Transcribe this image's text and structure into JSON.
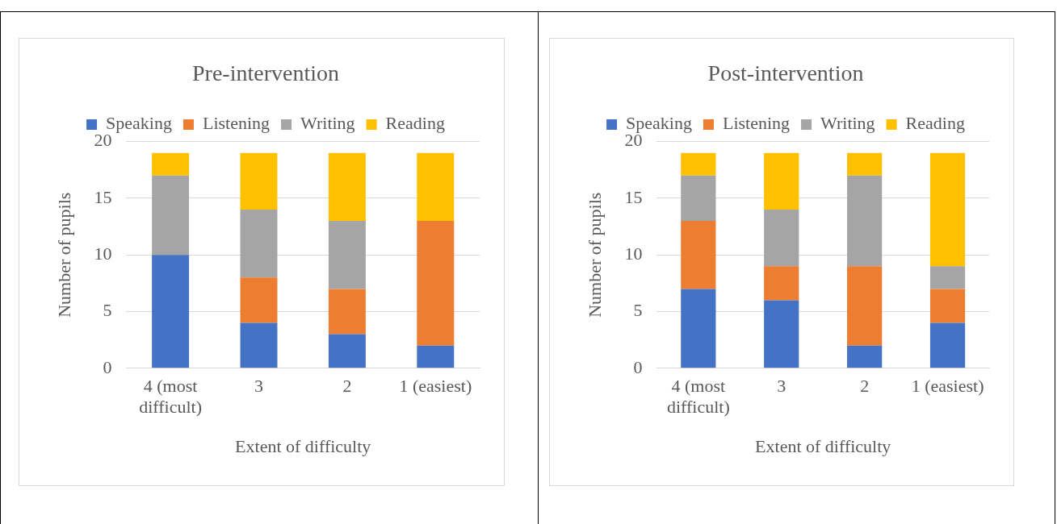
{
  "chart_data": [
    {
      "type": "bar",
      "title": "Pre-intervention",
      "xlabel": "Extent of difficulty",
      "ylabel": "Number of pupils",
      "categories": [
        "4 (most difficult)",
        "3",
        "2",
        "1 (easiest)"
      ],
      "stacked": true,
      "ylim": [
        0,
        20
      ],
      "yticks": [
        0,
        5,
        10,
        15,
        20
      ],
      "grid": "y",
      "legend": "top",
      "series": [
        {
          "name": "Speaking",
          "color": "#4472c4",
          "values": [
            10,
            4,
            3,
            2
          ]
        },
        {
          "name": "Listening",
          "color": "#ed7d31",
          "values": [
            0,
            4,
            4,
            11
          ]
        },
        {
          "name": "Writing",
          "color": "#a5a5a5",
          "values": [
            7,
            6,
            6,
            0
          ]
        },
        {
          "name": "Reading",
          "color": "#ffc000",
          "values": [
            2,
            5,
            6,
            6
          ]
        }
      ]
    },
    {
      "type": "bar",
      "title": "Post-intervention",
      "xlabel": "Extent of difficulty",
      "ylabel": "Number of pupils",
      "categories": [
        "4 (most difficult)",
        "3",
        "2",
        "1 (easiest)"
      ],
      "stacked": true,
      "ylim": [
        0,
        20
      ],
      "yticks": [
        0,
        5,
        10,
        15,
        20
      ],
      "grid": "y",
      "legend": "top",
      "series": [
        {
          "name": "Speaking",
          "color": "#4472c4",
          "values": [
            7,
            6,
            2,
            4
          ]
        },
        {
          "name": "Listening",
          "color": "#ed7d31",
          "values": [
            6,
            3,
            7,
            3
          ]
        },
        {
          "name": "Writing",
          "color": "#a5a5a5",
          "values": [
            4,
            5,
            8,
            2
          ]
        },
        {
          "name": "Reading",
          "color": "#ffc000",
          "values": [
            2,
            5,
            2,
            10
          ]
        }
      ]
    }
  ]
}
